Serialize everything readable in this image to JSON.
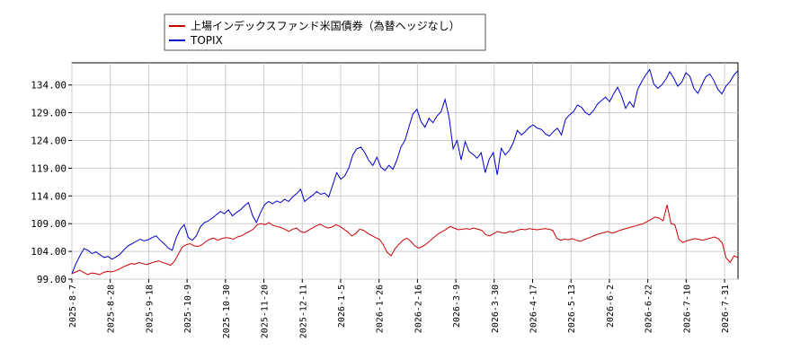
{
  "chart_data": {
    "type": "line",
    "title": "",
    "xlabel": "",
    "ylabel": "",
    "ylim": [
      99.0,
      138.0
    ],
    "yticks": [
      "99.00",
      "104.00",
      "109.00",
      "114.00",
      "119.00",
      "124.00",
      "129.00",
      "134.00"
    ],
    "xticks": [
      "2025-8-7",
      "2025-8-28",
      "2025-9-18",
      "2025-10-9",
      "2025-10-30",
      "2025-11-20",
      "2025-12-11",
      "2026-1-5",
      "2026-1-26",
      "2026-2-16",
      "2026-3-9",
      "2026-3-30",
      "2026-4-17",
      "2026-5-13",
      "2026-6-2",
      "2026-6-22",
      "2026-7-10",
      "2026-7-31"
    ],
    "grid": true,
    "legend": "top-left",
    "series": [
      {
        "name": "上場インデックスファンド米国債券（為替ヘッジなし）",
        "color": "#cc0000",
        "values": [
          100.0,
          100.3,
          100.6,
          100.2,
          99.8,
          100.1,
          100.0,
          99.8,
          100.2,
          100.4,
          100.3,
          100.5,
          100.8,
          101.2,
          101.5,
          101.8,
          101.7,
          102.0,
          101.8,
          101.6,
          101.9,
          102.1,
          102.3,
          102.0,
          101.8,
          101.5,
          102.2,
          103.5,
          104.8,
          105.2,
          105.4,
          105.0,
          104.9,
          105.2,
          105.8,
          106.2,
          106.4,
          106.0,
          106.3,
          106.5,
          106.4,
          106.2,
          106.6,
          106.8,
          107.2,
          107.6,
          108.0,
          108.8,
          109.0,
          108.8,
          109.2,
          108.7,
          108.5,
          108.3,
          108.0,
          107.6,
          108.0,
          108.2,
          107.6,
          107.4,
          107.8,
          108.2,
          108.6,
          108.9,
          108.5,
          108.2,
          108.4,
          108.8,
          108.5,
          108.0,
          107.5,
          106.8,
          107.2,
          108.0,
          107.8,
          107.3,
          106.9,
          106.5,
          106.2,
          105.2,
          103.8,
          103.2,
          104.5,
          105.3,
          106.0,
          106.4,
          105.8,
          105.0,
          104.6,
          104.9,
          105.4,
          106.0,
          106.6,
          107.2,
          107.6,
          108.0,
          108.5,
          108.2,
          107.9,
          108.0,
          108.1,
          108.0,
          108.2,
          108.0,
          107.8,
          107.0,
          106.8,
          107.2,
          107.6,
          107.4,
          107.3,
          107.6,
          107.5,
          107.8,
          108.0,
          107.9,
          108.1,
          108.0,
          107.9,
          108.0,
          108.1,
          108.0,
          107.8,
          106.4,
          106.0,
          106.2,
          106.1,
          106.3,
          106.0,
          105.8,
          106.1,
          106.4,
          106.7,
          107.0,
          107.2,
          107.4,
          107.6,
          107.3,
          107.5,
          107.8,
          108.0,
          108.2,
          108.4,
          108.6,
          108.8,
          109.0,
          109.4,
          109.8,
          110.2,
          110.0,
          109.5,
          112.4,
          109.0,
          108.8,
          106.2,
          105.6,
          105.9,
          106.1,
          106.3,
          106.2,
          106.0,
          106.2,
          106.4,
          106.6,
          106.3,
          105.5,
          102.8,
          102.0,
          103.2,
          102.9
        ]
      },
      {
        "name": "TOPIX",
        "color": "#0000cc",
        "values": [
          100.0,
          101.8,
          103.2,
          104.5,
          104.2,
          103.6,
          103.9,
          103.4,
          102.9,
          103.1,
          102.6,
          103.0,
          103.5,
          104.3,
          105.0,
          105.4,
          105.8,
          106.2,
          105.9,
          106.1,
          106.5,
          106.8,
          106.0,
          105.4,
          104.6,
          104.2,
          106.5,
          108.0,
          108.8,
          106.5,
          106.0,
          106.8,
          108.4,
          109.2,
          109.5,
          110.0,
          110.6,
          111.2,
          110.8,
          111.5,
          110.4,
          111.0,
          111.5,
          112.2,
          112.8,
          110.5,
          109.2,
          111.0,
          112.4,
          113.0,
          112.6,
          113.1,
          112.8,
          113.4,
          113.0,
          113.8,
          114.4,
          115.2,
          113.0,
          113.6,
          114.1,
          114.8,
          114.3,
          114.5,
          113.8,
          116.0,
          118.2,
          117.0,
          117.6,
          119.0,
          121.4,
          122.5,
          122.8,
          121.8,
          120.4,
          119.5,
          121.0,
          119.2,
          118.6,
          119.5,
          118.8,
          120.5,
          122.8,
          124.0,
          126.5,
          128.8,
          129.6,
          127.4,
          126.4,
          128.0,
          127.2,
          128.4,
          129.2,
          131.4,
          128.2,
          122.5,
          124.0,
          120.5,
          123.8,
          122.0,
          121.5,
          120.8,
          121.8,
          118.2,
          120.6,
          121.8,
          117.8,
          122.6,
          121.4,
          122.2,
          123.6,
          125.8,
          125.0,
          125.6,
          126.4,
          126.8,
          126.2,
          126.0,
          125.2,
          124.8,
          125.6,
          126.2,
          125.0,
          127.8,
          128.6,
          129.2,
          130.4,
          130.0,
          129.0,
          128.6,
          129.4,
          130.6,
          131.2,
          131.8,
          131.0,
          132.4,
          133.6,
          132.0,
          129.8,
          131.0,
          130.0,
          133.2,
          134.6,
          135.8,
          136.8,
          134.2,
          133.4,
          134.0,
          135.0,
          136.4,
          135.2,
          133.8,
          134.5,
          136.2,
          135.6,
          133.4,
          132.5,
          134.0,
          135.5,
          136.0,
          134.8,
          133.2,
          132.4,
          133.8,
          134.6,
          135.8,
          136.6
        ]
      }
    ]
  }
}
